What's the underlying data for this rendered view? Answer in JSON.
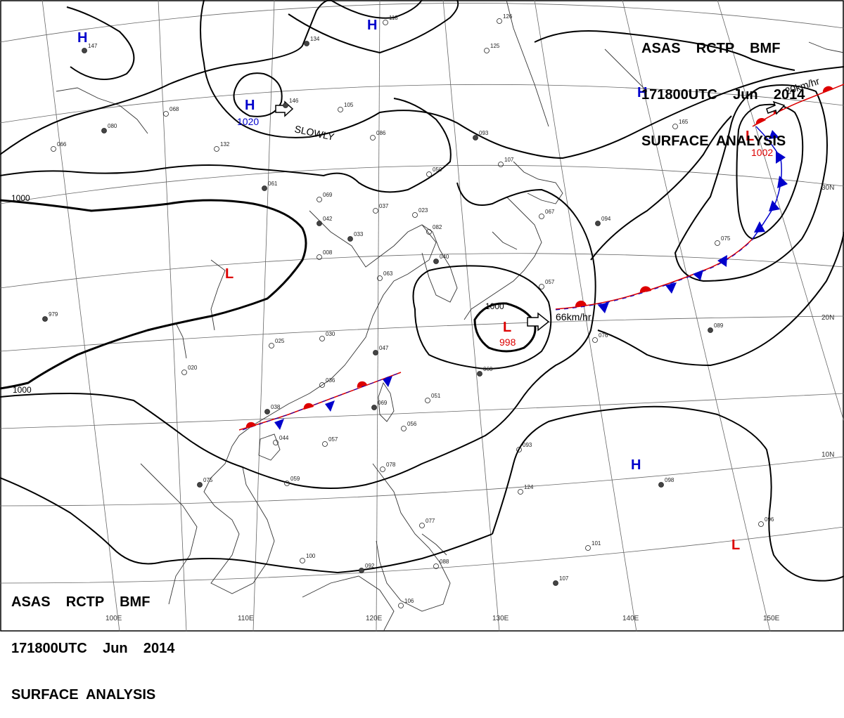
{
  "title": {
    "line1": "ASAS    RCTP    BMF",
    "line2": "171800UTC    Jun    2014",
    "line3": "SURFACE  ANALYSIS"
  },
  "pressure_systems": [
    {
      "type": "H",
      "color": "#0000cc"
    },
    {
      "type": "H",
      "color": "#0000cc"
    },
    {
      "type": "H",
      "color": "#0000cc",
      "pressure": "1020"
    },
    {
      "type": "H",
      "color": "#0000cc"
    },
    {
      "type": "H",
      "color": "#0000cc"
    },
    {
      "type": "L",
      "color": "#dd0000"
    },
    {
      "type": "L",
      "color": "#dd0000",
      "pressure": "998"
    },
    {
      "type": "L",
      "color": "#dd0000",
      "pressure": "1002"
    },
    {
      "type": "L",
      "color": "#dd0000"
    }
  ],
  "isobar_labels": [
    "1000",
    "1000",
    "1000"
  ],
  "motion_labels": [
    "SLOWLY",
    "66km/hr",
    "20km/hr"
  ],
  "longitude_labels": [
    "100E",
    "110E",
    "120E",
    "130E",
    "140E",
    "150E"
  ],
  "latitude_labels": [
    "30N",
    "20N",
    "10N"
  ],
  "colors": {
    "high": "#0000cc",
    "low": "#dd0000",
    "front_warm": "#dd0000",
    "front_cold": "#0000cc",
    "isobar": "#000000",
    "coast": "#333333",
    "grid": "#555555"
  },
  "stations": [
    "147",
    "118",
    "126",
    "134",
    "125",
    "068",
    "080",
    "066",
    "132",
    "146",
    "105",
    "086",
    "093",
    "107",
    "165",
    "061",
    "050",
    "069",
    "042",
    "037",
    "023",
    "033",
    "082",
    "008",
    "040",
    "063",
    "067",
    "094",
    "075",
    "057",
    "979",
    "030",
    "025",
    "047",
    "020",
    "036",
    "038",
    "044",
    "057",
    "069",
    "056",
    "051",
    "060",
    "093",
    "124",
    "098",
    "078",
    "059",
    "075",
    "077",
    "100",
    "092",
    "088",
    "101",
    "107",
    "106",
    "096",
    "089",
    "076"
  ]
}
